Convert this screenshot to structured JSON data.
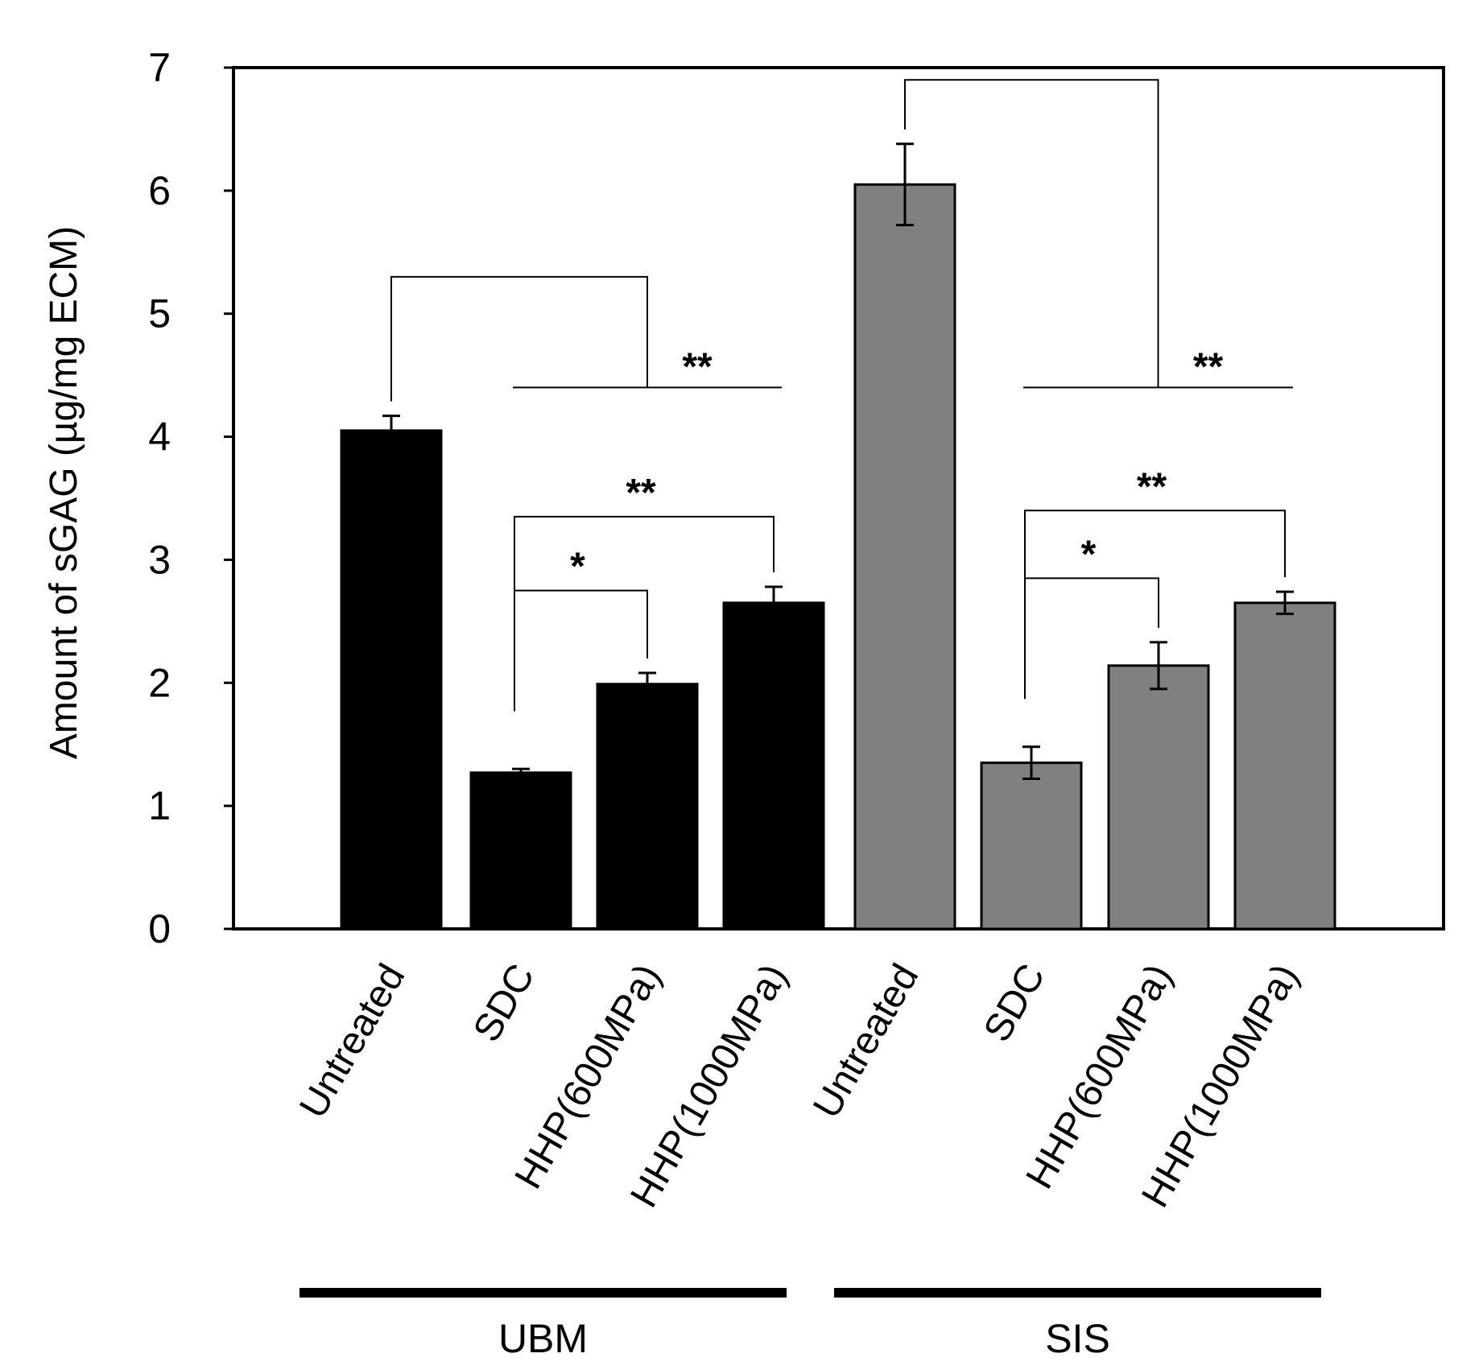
{
  "chart_data": {
    "type": "bar",
    "title": "",
    "xlabel": "",
    "ylabel": "Amount of sGAG (µg/mg ECM)",
    "ylim": [
      0,
      7
    ],
    "yticks": [
      "0",
      "1",
      "2",
      "3",
      "4",
      "5",
      "6",
      "7"
    ],
    "grid": false,
    "categories": [
      "Untreated",
      "SDC",
      "HHP(600MPa)",
      "HHP(1000MPa)",
      "Untreated",
      "SDC",
      "HHP(600MPa)",
      "HHP(1000MPa)"
    ],
    "values": [
      4.05,
      1.27,
      1.99,
      2.65,
      6.05,
      1.35,
      2.14,
      2.65
    ],
    "errors": [
      0.12,
      0.03,
      0.09,
      0.13,
      0.33,
      0.13,
      0.19,
      0.09
    ],
    "colors": [
      "#000000",
      "#000000",
      "#000000",
      "#000000",
      "#808080",
      "#808080",
      "#808080",
      "#808080"
    ],
    "groups": [
      {
        "name": "UBM",
        "from": 0,
        "to": 3
      },
      {
        "name": "SIS",
        "from": 4,
        "to": 7
      }
    ],
    "significance": [
      {
        "from": 0,
        "to_range": [
          1,
          3
        ],
        "label": "**",
        "y": 5.3,
        "y2": 4.4
      },
      {
        "from": 1,
        "to": 3,
        "label": "**",
        "y": 3.35
      },
      {
        "from": 1,
        "to": 2,
        "label": "*",
        "y": 2.75
      },
      {
        "from": 4,
        "to_range": [
          5,
          7
        ],
        "label": "**",
        "y": 6.9,
        "y2": 4.4
      },
      {
        "from": 5,
        "to": 7,
        "label": "**",
        "y": 3.4
      },
      {
        "from": 5,
        "to": 6,
        "label": "*",
        "y": 2.85
      }
    ]
  }
}
